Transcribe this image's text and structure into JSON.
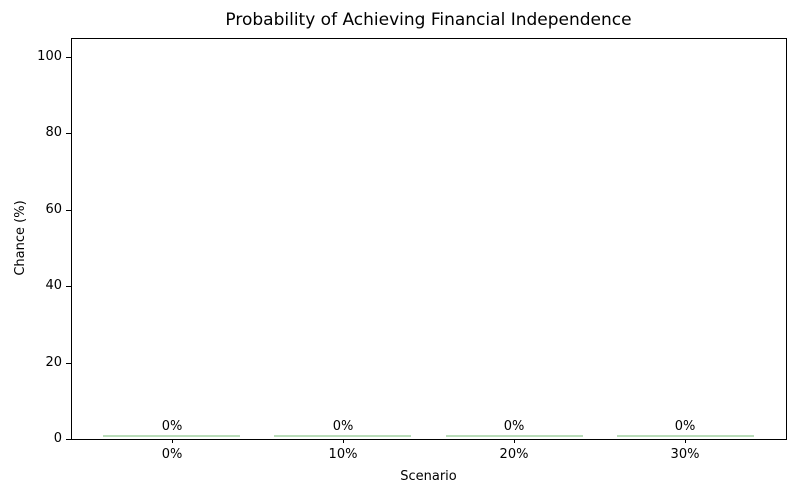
{
  "chart_data": {
    "type": "bar",
    "title": "Probability of Achieving Financial Independence",
    "xlabel": "Scenario",
    "ylabel": "Chance (%)",
    "categories": [
      "0%",
      "10%",
      "20%",
      "30%"
    ],
    "values": [
      0,
      0,
      0,
      0
    ],
    "bar_labels": [
      "0%",
      "0%",
      "0%",
      "0%"
    ],
    "yticks": [
      0,
      20,
      40,
      60,
      80,
      100
    ],
    "ylim": [
      0,
      105
    ],
    "bar_color": "#b9dcb9",
    "text_color": "#000000",
    "grid": false,
    "legend_position": "none",
    "background": "#ffffff"
  }
}
